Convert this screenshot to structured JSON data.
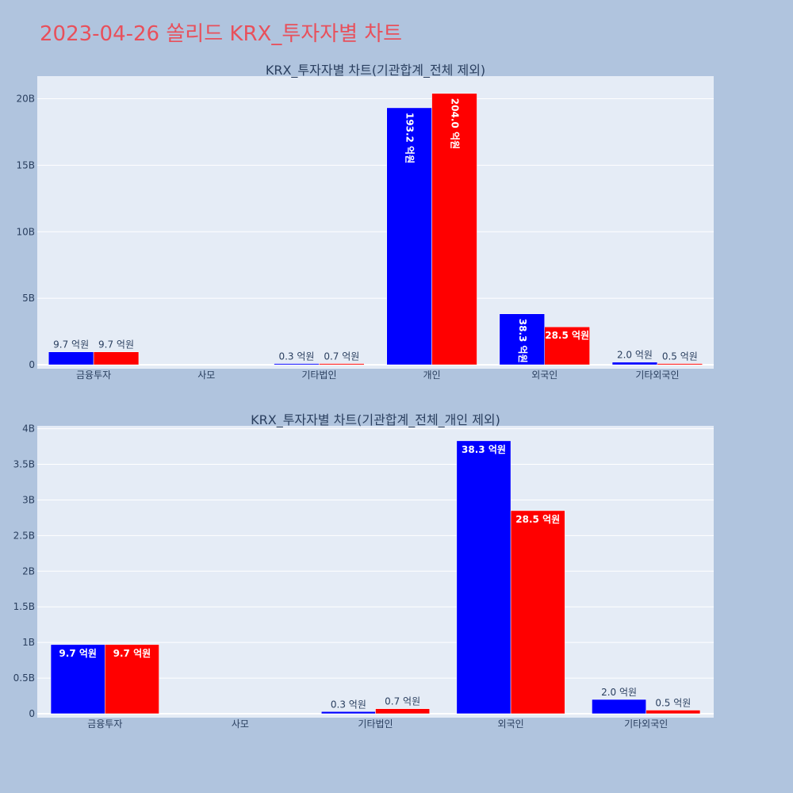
{
  "title": "2023-04-26 쏠리드 KRX_투자자별 차트",
  "colors": {
    "series1": "#0000ff",
    "series2": "#ff0000",
    "plot_bg": "#e5ecf6",
    "page_bg": "#b0c4de",
    "title": "#e8505b"
  },
  "chart_data": [
    {
      "type": "bar",
      "title": "KRX_투자자별 차트(기관합계_전체 제외)",
      "categories": [
        "금융투자",
        "사모",
        "기타법인",
        "개인",
        "외국인",
        "기타외국인"
      ],
      "series": [
        {
          "values": [
            0.97,
            0,
            0.03,
            19.32,
            3.83,
            0.2
          ],
          "labels": [
            "9.7 억원",
            "",
            "0.3 억원",
            "193.2 억원",
            "38.3 억원",
            "2.0 억원"
          ]
        },
        {
          "values": [
            0.97,
            0,
            0.07,
            20.4,
            2.85,
            0.05
          ],
          "labels": [
            "9.7 억원",
            "",
            "0.7 억원",
            "204.0 억원",
            "28.5 억원",
            "0.5 억원"
          ]
        }
      ],
      "yticks": [
        "0",
        "5B",
        "10B",
        "15B",
        "20B"
      ],
      "ytick_values": [
        0,
        5,
        10,
        15,
        20
      ],
      "ylim": [
        0,
        21.7
      ],
      "unit": "B"
    },
    {
      "type": "bar",
      "title": "KRX_투자자별 차트(기관합계_전체_개인 제외)",
      "categories": [
        "금융투자",
        "사모",
        "기타법인",
        "외국인",
        "기타외국인"
      ],
      "series": [
        {
          "values": [
            0.97,
            0,
            0.03,
            3.83,
            0.2
          ],
          "labels": [
            "9.7 억원",
            "",
            "0.3 억원",
            "38.3 억원",
            "2.0 억원"
          ]
        },
        {
          "values": [
            0.97,
            0,
            0.07,
            2.85,
            0.05
          ],
          "labels": [
            "9.7 억원",
            "",
            "0.7 억원",
            "28.5 억원",
            "0.5 억원"
          ]
        }
      ],
      "yticks": [
        "0",
        "0.5B",
        "1B",
        "1.5B",
        "2B",
        "2.5B",
        "3B",
        "3.5B",
        "4B"
      ],
      "ytick_values": [
        0,
        0.5,
        1,
        1.5,
        2,
        2.5,
        3,
        3.5,
        4
      ],
      "ylim": [
        0,
        4.04
      ],
      "unit": "B"
    }
  ]
}
